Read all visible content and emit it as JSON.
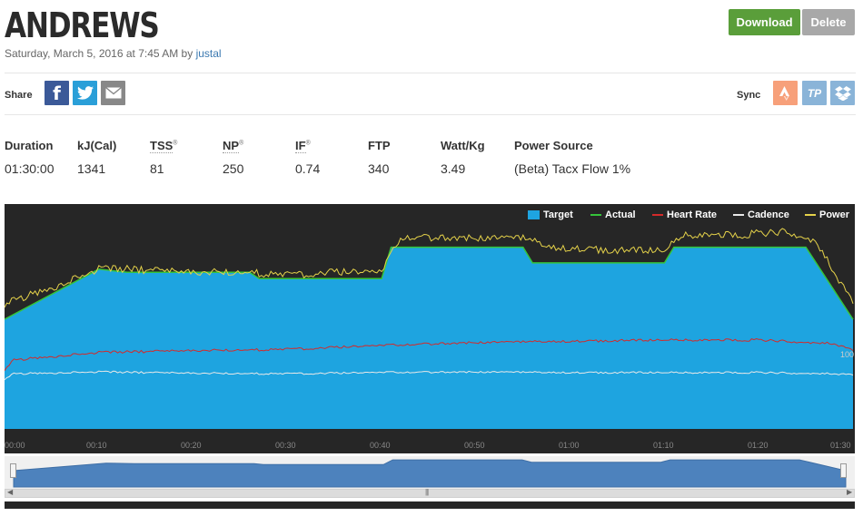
{
  "header": {
    "title": "ANDREWS",
    "date": "Saturday, March 5, 2016 at 7:45 AM by ",
    "user": "justal",
    "download_label": "Download",
    "delete_label": "Delete"
  },
  "share": {
    "label": "Share",
    "facebook_glyph": "f",
    "icons": [
      "facebook-icon",
      "twitter-icon",
      "email-icon"
    ]
  },
  "sync": {
    "label": "Sync",
    "tp_label": "TP",
    "icons": [
      "strava-icon",
      "trainingpeaks-icon",
      "dropbox-icon"
    ]
  },
  "stats": {
    "duration": {
      "label": "Duration",
      "value": "01:30:00"
    },
    "kj": {
      "label": "kJ(Cal)",
      "value": "1341"
    },
    "tss": {
      "label": "TSS",
      "value": "81"
    },
    "np": {
      "label": "NP",
      "value": "250"
    },
    "if": {
      "label": "IF",
      "value": "0.74"
    },
    "ftp": {
      "label": "FTP",
      "value": "340"
    },
    "wattkg": {
      "label": "Watt/Kg",
      "value": "3.49"
    },
    "power_source": {
      "label": "Power Source",
      "value": "(Beta) Tacx Flow 1%"
    }
  },
  "chart_data": {
    "type": "area",
    "x_unit": "minutes",
    "xlim": [
      0,
      90
    ],
    "x_ticks": [
      "00:00",
      "00:10",
      "00:20",
      "00:30",
      "00:40",
      "00:50",
      "01:00",
      "01:10",
      "01:20",
      "01:30"
    ],
    "side_value": "100",
    "legend": [
      {
        "name": "Target",
        "color": "#1ea4e0"
      },
      {
        "name": "Actual",
        "color": "#35c43a"
      },
      {
        "name": "Heart Rate",
        "color": "#d42a2a"
      },
      {
        "name": "Cadence",
        "color": "#e8e8e8"
      },
      {
        "name": "Power",
        "color": "#e5d24a"
      }
    ],
    "target": {
      "x": [
        0,
        10,
        13,
        26,
        27,
        40,
        41,
        55,
        56,
        70,
        71,
        85,
        90
      ],
      "y": [
        175,
        255,
        250,
        250,
        240,
        240,
        290,
        290,
        265,
        265,
        290,
        290,
        175
      ]
    },
    "power": {
      "x": [
        0,
        5,
        10,
        13,
        20,
        26,
        30,
        35,
        40,
        42,
        48,
        55,
        58,
        65,
        70,
        72,
        78,
        83,
        86,
        88,
        90
      ],
      "y": [
        200,
        225,
        255,
        255,
        250,
        250,
        245,
        250,
        250,
        305,
        305,
        305,
        290,
        285,
        285,
        310,
        310,
        315,
        300,
        250,
        200
      ]
    },
    "heart_rate": {
      "x": [
        0,
        1,
        10,
        20,
        30,
        40,
        50,
        60,
        70,
        80,
        88,
        90
      ],
      "y": [
        95,
        110,
        122,
        125,
        127,
        133,
        138,
        140,
        142,
        142,
        136,
        125
      ]
    },
    "cadence": {
      "x": [
        0,
        1,
        10,
        20,
        30,
        40,
        50,
        60,
        70,
        80,
        88,
        90
      ],
      "y": [
        80,
        88,
        91,
        89,
        88,
        90,
        91,
        90,
        90,
        90,
        88,
        86
      ]
    },
    "navigator": {
      "x": [
        0,
        10,
        13,
        26,
        27,
        40,
        41,
        55,
        56,
        70,
        71,
        85,
        90
      ],
      "y": [
        175,
        255,
        250,
        250,
        240,
        240,
        290,
        290,
        265,
        265,
        290,
        290,
        175
      ]
    }
  }
}
